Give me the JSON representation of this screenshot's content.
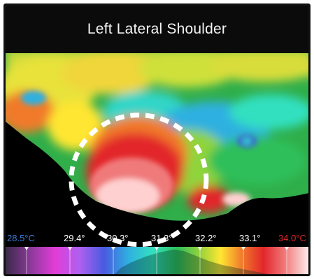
{
  "title": "Left Lateral Shoulder",
  "scale": {
    "min_label": "28.5°C",
    "ticks": [
      "29.4°",
      "30.3°",
      "31.3°",
      "32.2°",
      "33.1°"
    ],
    "max_label": "34.0°C",
    "min_color": "#3b7dd8",
    "tick_color": "#ffffff",
    "max_color": "#e2262b"
  },
  "palette_colors": [
    "#2a1a3a",
    "#7a2a8a",
    "#e23cd6",
    "#c05cf0",
    "#3b5bdc",
    "#2fb0e0",
    "#33e0c0",
    "#2fbf5a",
    "#8fd43a",
    "#ffe633",
    "#f07a2a",
    "#e2262b",
    "#f07a7a",
    "#ffd0d0",
    "#ffffff"
  ],
  "roi_color": "#ffffff"
}
